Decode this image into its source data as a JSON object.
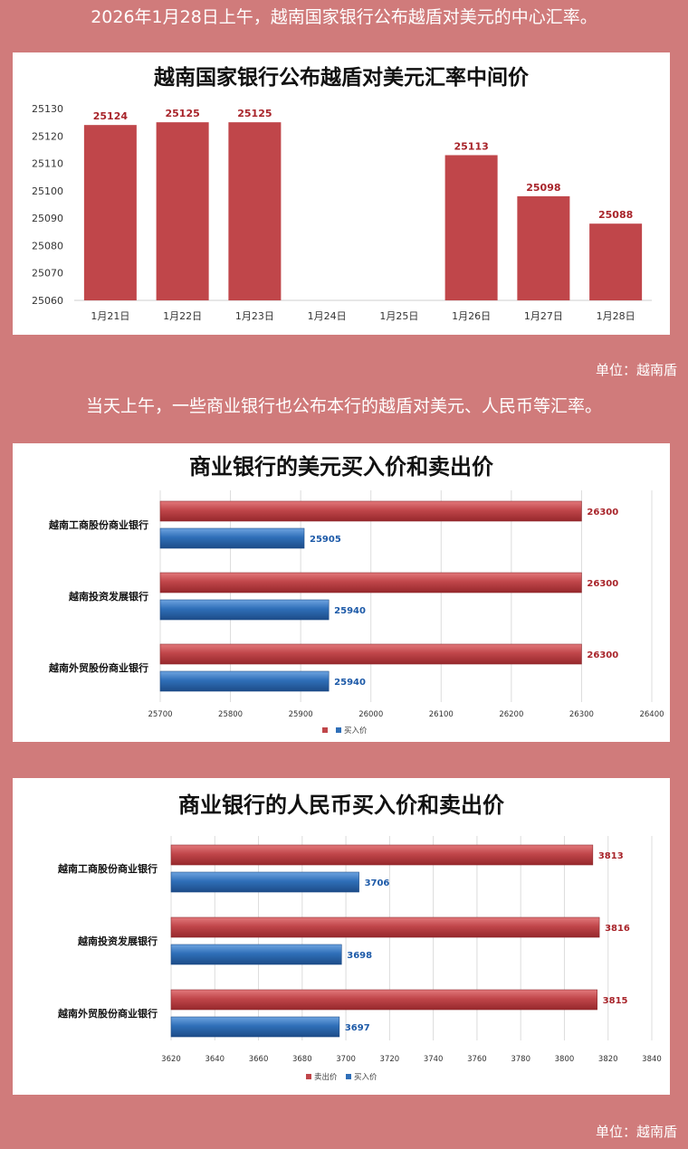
{
  "headline": "2026年1月28日上午，越南国家银行公布越盾对美元的中心汇率。",
  "subhead": "当天上午，一些商业银行也公布本行的越盾对美元、人民币等汇率。",
  "unit_label_1": "单位：越南盾",
  "unit_label_2": "单位：越南盾",
  "colors": {
    "red": "#c0464a",
    "blue": "#2f6fb8",
    "bg": "#d07b7b"
  },
  "chart_data": [
    {
      "type": "bar",
      "title": "越南国家银行公布越盾对美元汇率中间价",
      "categories": [
        "1月21日",
        "1月22日",
        "1月23日",
        "1月24日",
        "1月25日",
        "1月26日",
        "1月27日",
        "1月28日"
      ],
      "values": [
        25124,
        25125,
        25125,
        null,
        null,
        25113,
        25098,
        25088
      ],
      "data_labels": [
        "25124",
        "25125",
        "25125",
        "",
        "",
        "25113",
        "25098",
        "25088"
      ],
      "ylim": [
        25060,
        25130
      ],
      "yticks": [
        "25060",
        "25070",
        "25080",
        "25090",
        "25100",
        "25110",
        "25120",
        "25130"
      ],
      "grid": false
    },
    {
      "type": "bar",
      "orientation": "horizontal",
      "title": "商业银行的美元买入价和卖出价",
      "categories": [
        "越南工商股份商业银行",
        "越南投资发展银行",
        "越南外贸股份商业银行"
      ],
      "series": [
        {
          "name": "",
          "values": [
            26300,
            26300,
            26300
          ]
        },
        {
          "name": "买入价",
          "values": [
            25905,
            25940,
            25940
          ]
        }
      ],
      "data_labels": [
        [
          "26300",
          "26300",
          "26300"
        ],
        [
          "25905",
          "25940",
          "25940"
        ]
      ],
      "xlim": [
        25700,
        26400
      ],
      "xticks": [
        "25700",
        "25800",
        "25900",
        "26000",
        "26100",
        "26200",
        "26300",
        "26400"
      ],
      "legend": "bottom"
    },
    {
      "type": "bar",
      "orientation": "horizontal",
      "title": "商业银行的人民币买入价和卖出价",
      "categories": [
        "越南工商股份商业银行",
        "越南投资发展银行",
        "越南外贸股份商业银行"
      ],
      "series": [
        {
          "name": "卖出价",
          "values": [
            3813,
            3816,
            3815
          ]
        },
        {
          "name": "买入价",
          "values": [
            3706,
            3698,
            3697
          ]
        }
      ],
      "data_labels": [
        [
          "3813",
          "3816",
          "3815"
        ],
        [
          "3706",
          "3698",
          "3697"
        ]
      ],
      "xlim": [
        3620,
        3840
      ],
      "xticks": [
        "3620",
        "3640",
        "3660",
        "3680",
        "3700",
        "3720",
        "3740",
        "3760",
        "3780",
        "3800",
        "3820",
        "3840"
      ],
      "legend": "bottom"
    }
  ]
}
